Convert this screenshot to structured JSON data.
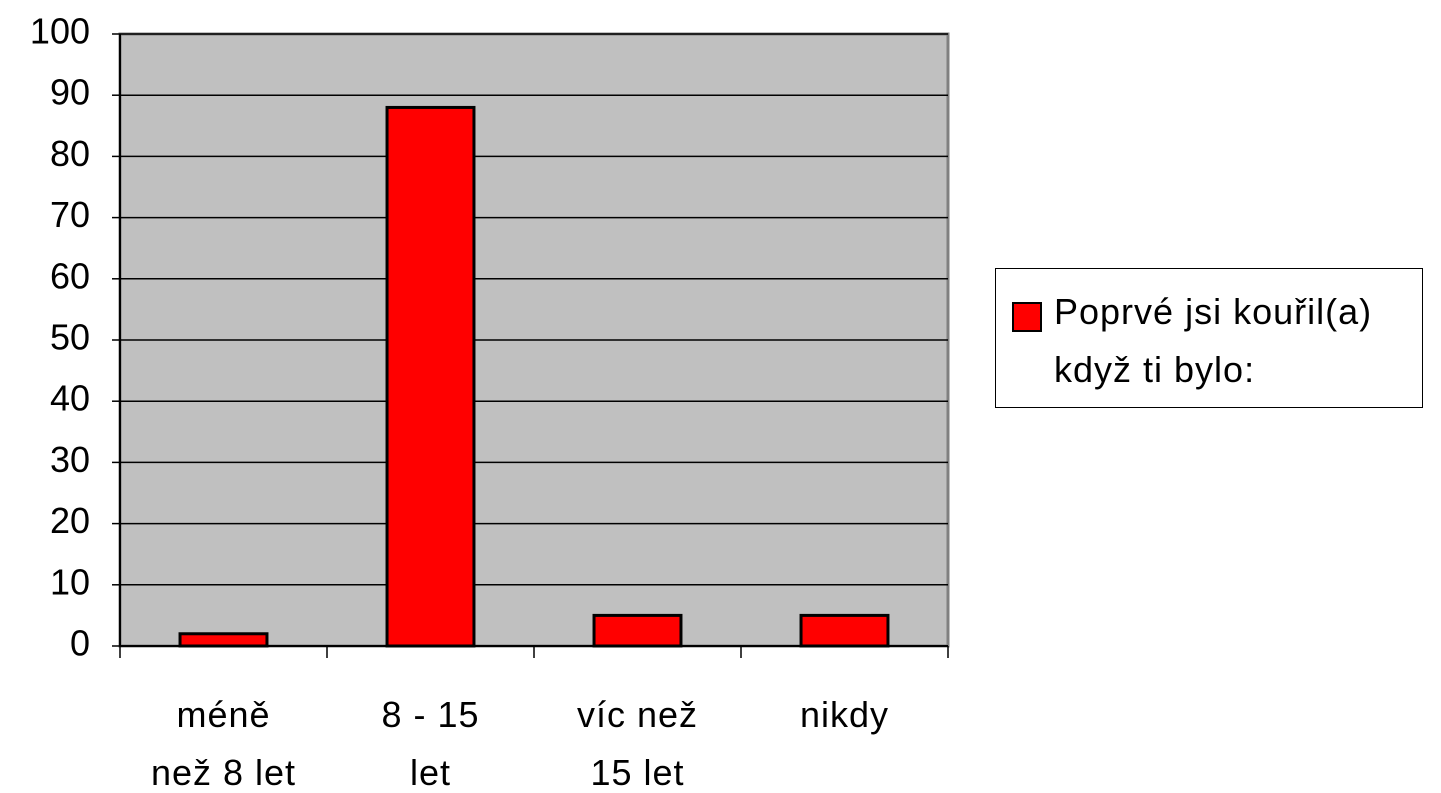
{
  "chart_data": {
    "type": "bar",
    "categories": [
      "méně než 8 let",
      "8 - 15 let",
      "víc než 15 let",
      "nikdy"
    ],
    "series": [
      {
        "name": "Poprvé jsi kouřil(a) když ti bylo:",
        "color": "#ff0000",
        "values": [
          2,
          88,
          5,
          5
        ]
      }
    ],
    "ylim": [
      0,
      100
    ],
    "yticks": [
      0,
      10,
      20,
      30,
      40,
      50,
      60,
      70,
      80,
      90,
      100
    ],
    "grid": true,
    "legend": "right"
  }
}
